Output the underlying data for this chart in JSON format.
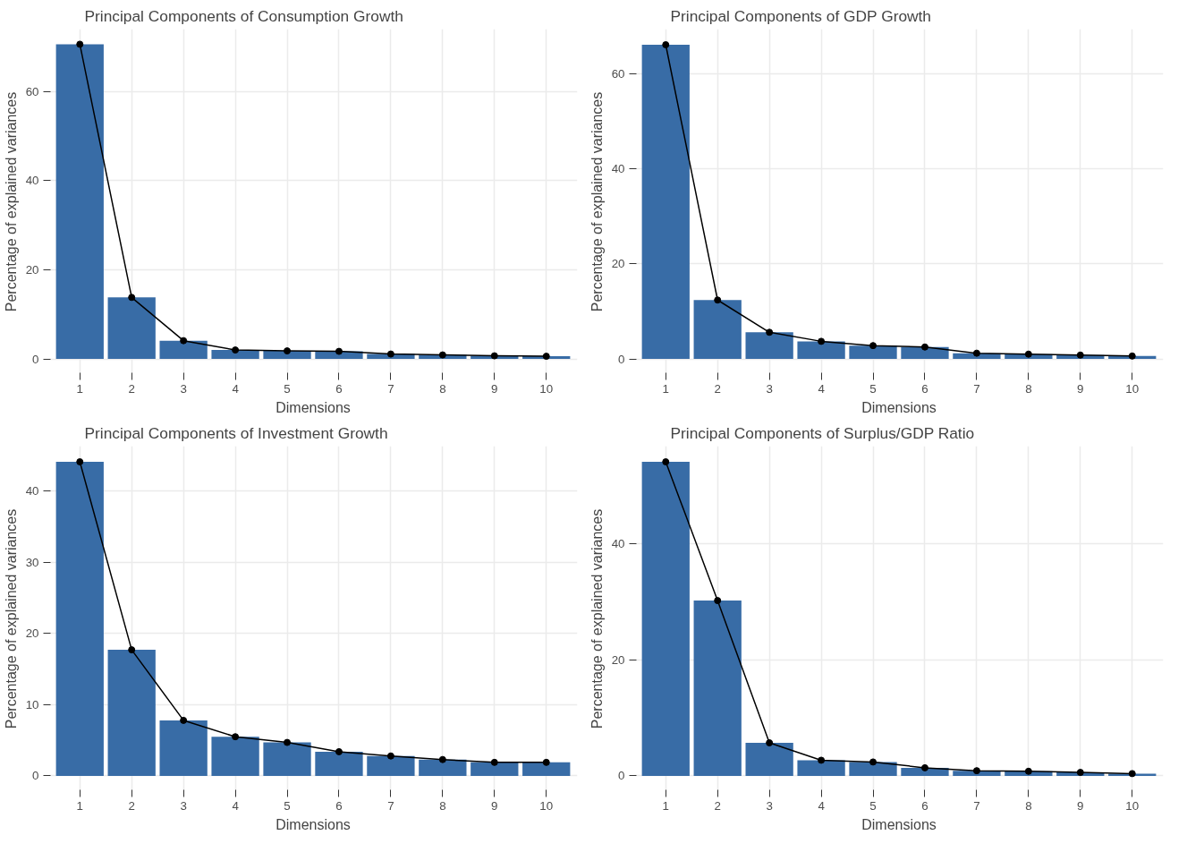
{
  "chart_data": [
    {
      "type": "bar",
      "title": "Principal Components of Consumption Growth",
      "xlabel": "Dimensions",
      "ylabel": "Percentage of explained variances",
      "categories": [
        "1",
        "2",
        "3",
        "4",
        "5",
        "6",
        "7",
        "8",
        "9",
        "10"
      ],
      "ylim": [
        -3.5,
        74
      ],
      "yticks": [
        0,
        20,
        40,
        60
      ],
      "grid": true,
      "marker": "circle",
      "series": [
        {
          "color": "#386ca6",
          "values": [
            70.6,
            13.8,
            4.1,
            2.0,
            1.8,
            1.7,
            1.1,
            0.9,
            0.7,
            0.6
          ]
        },
        {
          "type": "line",
          "color": "#000000",
          "values": [
            70.6,
            13.8,
            4.1,
            2.0,
            1.8,
            1.7,
            1.1,
            0.9,
            0.7,
            0.6
          ]
        }
      ]
    },
    {
      "type": "bar",
      "title": "Principal Components of GDP Growth",
      "xlabel": "Dimensions",
      "ylabel": "Percentage of explained variances",
      "categories": [
        "1",
        "2",
        "3",
        "4",
        "5",
        "6",
        "7",
        "8",
        "9",
        "10"
      ],
      "ylim": [
        -3.3,
        69.5
      ],
      "yticks": [
        0,
        20,
        40,
        60
      ],
      "grid": true,
      "marker": "circle",
      "series": [
        {
          "color": "#386ca6",
          "values": [
            66.2,
            12.4,
            5.6,
            3.7,
            2.8,
            2.5,
            1.2,
            1.0,
            0.8,
            0.6
          ]
        },
        {
          "type": "line",
          "color": "#000000",
          "values": [
            66.2,
            12.4,
            5.6,
            3.7,
            2.8,
            2.5,
            1.2,
            1.0,
            0.8,
            0.6
          ]
        }
      ]
    },
    {
      "type": "bar",
      "title": "Principal Components of Investment Growth",
      "xlabel": "Dimensions",
      "ylabel": "Percentage of explained variances",
      "categories": [
        "1",
        "2",
        "3",
        "4",
        "5",
        "6",
        "7",
        "8",
        "9",
        "10"
      ],
      "ylim": [
        -2.2,
        46.3
      ],
      "yticks": [
        0,
        10,
        20,
        30,
        40
      ],
      "grid": true,
      "marker": "circle",
      "series": [
        {
          "color": "#386ca6",
          "values": [
            44.1,
            17.7,
            7.8,
            5.5,
            4.7,
            3.4,
            2.8,
            2.3,
            1.9,
            1.9
          ]
        },
        {
          "type": "line",
          "color": "#000000",
          "values": [
            44.1,
            17.7,
            7.8,
            5.5,
            4.7,
            3.4,
            2.8,
            2.3,
            1.9,
            1.9
          ]
        }
      ]
    },
    {
      "type": "bar",
      "title": "Principal Components of Surplus/GDP Ratio",
      "xlabel": "Dimensions",
      "ylabel": "Percentage of explained variances",
      "categories": [
        "1",
        "2",
        "3",
        "4",
        "5",
        "6",
        "7",
        "8",
        "9",
        "10"
      ],
      "ylim": [
        -2.7,
        56.8
      ],
      "yticks": [
        0,
        20,
        40
      ],
      "grid": true,
      "marker": "circle",
      "series": [
        {
          "color": "#386ca6",
          "values": [
            54.1,
            30.2,
            5.7,
            2.7,
            2.4,
            1.4,
            0.9,
            0.8,
            0.6,
            0.4
          ]
        },
        {
          "type": "line",
          "color": "#000000",
          "values": [
            54.1,
            30.2,
            5.7,
            2.7,
            2.4,
            1.4,
            0.9,
            0.8,
            0.6,
            0.4
          ]
        }
      ]
    }
  ]
}
